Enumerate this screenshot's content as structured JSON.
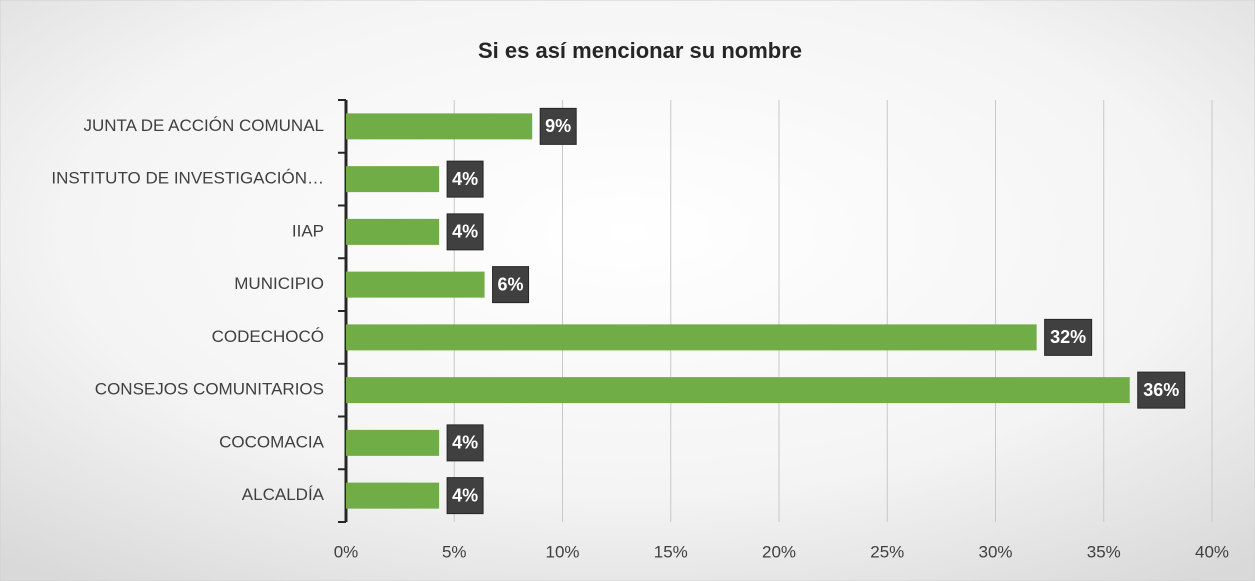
{
  "chart_data": {
    "type": "barh",
    "title": "Si es así mencionar su nombre",
    "categories": [
      "JUNTA DE ACCIÓN COMUNAL",
      "INSTITUTO DE INVESTIGACIÓN…",
      "IIAP",
      "MUNICIPIO",
      "CODECHOCÓ",
      "CONSEJOS COMUNITARIOS",
      "COCOMACIA",
      "ALCALDÍA"
    ],
    "values": [
      8.6,
      4.3,
      4.3,
      6.4,
      31.9,
      36.2,
      4.3,
      4.3
    ],
    "value_labels": [
      "9%",
      "4%",
      "4%",
      "6%",
      "32%",
      "36%",
      "4%",
      "4%"
    ],
    "color": "#70ad47",
    "xlim": [
      0,
      40
    ],
    "xticks": [
      {
        "value": 0,
        "label": "0%"
      },
      {
        "value": 5,
        "label": "5%"
      },
      {
        "value": 10,
        "label": "10%"
      },
      {
        "value": 15,
        "label": "15%"
      },
      {
        "value": 20,
        "label": "20%"
      },
      {
        "value": 25,
        "label": "25%"
      },
      {
        "value": 30,
        "label": "30%"
      },
      {
        "value": 35,
        "label": "35%"
      },
      {
        "value": 40,
        "label": "40%"
      }
    ],
    "grid": true
  }
}
